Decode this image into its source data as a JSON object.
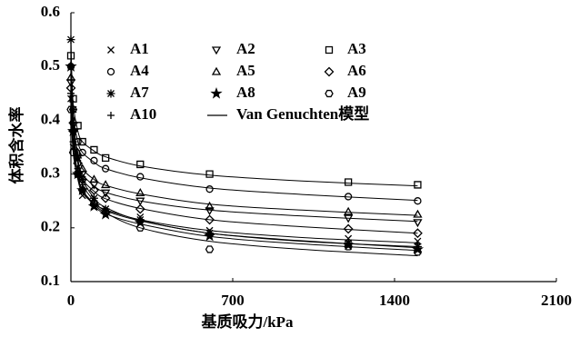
{
  "chart_data": {
    "type": "scatter",
    "xlabel": "基质吸力/kPa",
    "ylabel": "体积含水率",
    "xlim": [
      0,
      2100
    ],
    "xticks": [
      0,
      700,
      1400,
      2100
    ],
    "ylim": [
      0.1,
      0.6
    ],
    "yticks": [
      0.1,
      0.2,
      0.3,
      0.4,
      0.5,
      0.6
    ],
    "color": "#000000",
    "x": [
      0,
      10,
      30,
      50,
      100,
      150,
      300,
      600,
      1200,
      1500
    ],
    "series": [
      {
        "name": "A1",
        "marker": "x",
        "values": [
          0.44,
          0.35,
          0.3,
          0.26,
          0.24,
          0.235,
          0.22,
          0.195,
          0.18,
          0.175
        ]
      },
      {
        "name": "A2",
        "marker": "tri-down",
        "values": [
          0.47,
          0.39,
          0.33,
          0.3,
          0.28,
          0.265,
          0.25,
          0.232,
          0.218,
          0.21
        ]
      },
      {
        "name": "A3",
        "marker": "square",
        "values": [
          0.52,
          0.44,
          0.39,
          0.36,
          0.345,
          0.33,
          0.318,
          0.3,
          0.285,
          0.28
        ]
      },
      {
        "name": "A4",
        "marker": "circle",
        "values": [
          0.5,
          0.42,
          0.36,
          0.34,
          0.325,
          0.31,
          0.295,
          0.272,
          0.258,
          0.25
        ]
      },
      {
        "name": "A5",
        "marker": "tri-up",
        "values": [
          0.48,
          0.4,
          0.34,
          0.31,
          0.29,
          0.28,
          0.265,
          0.24,
          0.23,
          0.225
        ]
      },
      {
        "name": "A6",
        "marker": "diamond",
        "values": [
          0.46,
          0.38,
          0.32,
          0.29,
          0.27,
          0.255,
          0.235,
          0.215,
          0.198,
          0.19
        ]
      },
      {
        "name": "A7",
        "marker": "asterisk",
        "values": [
          0.55,
          0.42,
          0.33,
          0.29,
          0.255,
          0.235,
          0.215,
          0.19,
          0.172,
          0.165
        ]
      },
      {
        "name": "A8",
        "marker": "star",
        "values": [
          0.5,
          0.38,
          0.3,
          0.27,
          0.24,
          0.225,
          0.21,
          0.185,
          0.168,
          0.16
        ]
      },
      {
        "name": "A9",
        "marker": "hexagon",
        "values": [
          0.42,
          0.34,
          0.3,
          0.27,
          0.245,
          0.23,
          0.2,
          0.16,
          0.165,
          0.155
        ]
      },
      {
        "name": "A10",
        "marker": "plus",
        "values": [
          0.45,
          0.36,
          0.31,
          0.28,
          0.25,
          0.23,
          0.215,
          0.19,
          0.175,
          0.17
        ]
      }
    ],
    "fit": {
      "name": "Van Genuchten模型",
      "x": [
        0,
        10,
        30,
        50,
        100,
        150,
        300,
        600,
        1000,
        1500
      ],
      "lines": [
        [
          0.44,
          0.34,
          0.29,
          0.265,
          0.245,
          0.234,
          0.215,
          0.195,
          0.182,
          0.172
        ],
        [
          0.47,
          0.38,
          0.325,
          0.3,
          0.278,
          0.266,
          0.25,
          0.233,
          0.222,
          0.212
        ],
        [
          0.52,
          0.43,
          0.38,
          0.36,
          0.343,
          0.332,
          0.315,
          0.298,
          0.287,
          0.278
        ],
        [
          0.5,
          0.41,
          0.36,
          0.34,
          0.322,
          0.31,
          0.293,
          0.274,
          0.262,
          0.251
        ],
        [
          0.48,
          0.39,
          0.34,
          0.31,
          0.29,
          0.279,
          0.263,
          0.244,
          0.233,
          0.223
        ],
        [
          0.46,
          0.37,
          0.32,
          0.29,
          0.268,
          0.254,
          0.236,
          0.215,
          0.202,
          0.19
        ],
        [
          0.55,
          0.41,
          0.33,
          0.29,
          0.256,
          0.238,
          0.214,
          0.19,
          0.176,
          0.163
        ],
        [
          0.5,
          0.37,
          0.3,
          0.27,
          0.242,
          0.226,
          0.207,
          0.184,
          0.17,
          0.158
        ],
        [
          0.42,
          0.34,
          0.295,
          0.27,
          0.245,
          0.228,
          0.2,
          0.175,
          0.16,
          0.148
        ],
        [
          0.45,
          0.35,
          0.305,
          0.28,
          0.25,
          0.232,
          0.213,
          0.19,
          0.175,
          0.165
        ]
      ]
    }
  }
}
